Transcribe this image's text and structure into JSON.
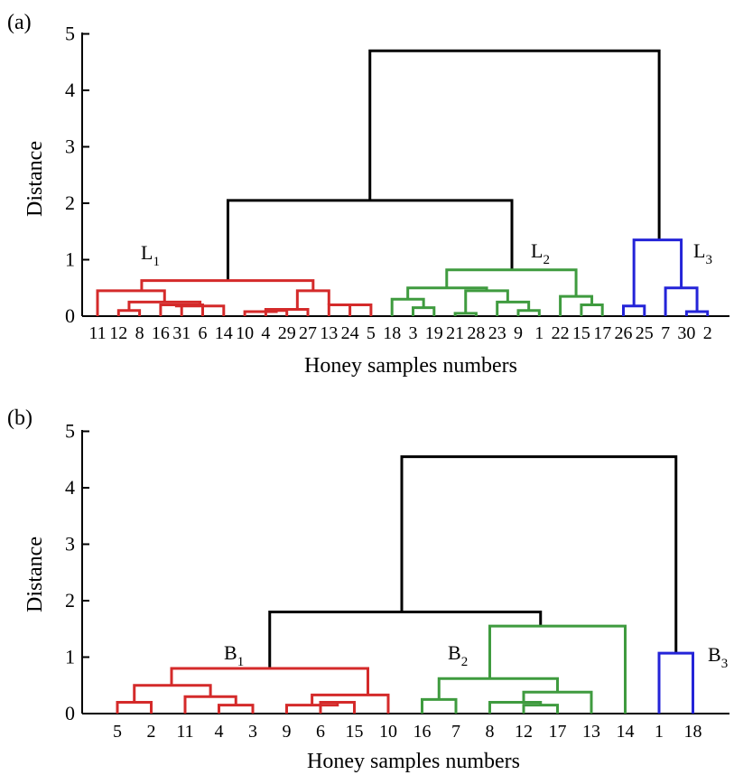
{
  "colors": {
    "axis": "#000000",
    "red": "#d42a2a",
    "green": "#3f9b3f",
    "blue": "#2424d8",
    "black": "#000000"
  },
  "chart_data": [
    {
      "type": "dendrogram",
      "panel": "(a)",
      "xlabel": "Honey samples numbers",
      "ylabel": "Distance",
      "ylim": [
        0,
        5
      ],
      "yticks": [
        "0",
        "1",
        "2",
        "3",
        "4",
        "5"
      ],
      "leaves": [
        "11",
        "12",
        "8",
        "16",
        "31",
        "6",
        "14",
        "10",
        "4",
        "29",
        "27",
        "13",
        "24",
        "5",
        "18",
        "3",
        "19",
        "21",
        "28",
        "23",
        "9",
        "1",
        "22",
        "15",
        "17",
        "26",
        "25",
        "7",
        "30",
        "2"
      ],
      "clusters": [
        {
          "label": "L",
          "sub": "1",
          "color": "red",
          "height": 0.63
        },
        {
          "label": "L",
          "sub": "2",
          "color": "green",
          "height": 0.82
        },
        {
          "label": "L",
          "sub": "3",
          "color": "blue",
          "height": 1.35
        }
      ],
      "merges": [
        {
          "left": "L1",
          "right": "L2",
          "height": 2.05
        },
        {
          "left": "L1+L2",
          "right": "L3",
          "height": 4.7
        }
      ]
    },
    {
      "type": "dendrogram",
      "panel": "(b)",
      "xlabel": "Honey samples numbers",
      "ylabel": "Distance",
      "ylim": [
        0,
        5
      ],
      "yticks": [
        "0",
        "1",
        "2",
        "3",
        "4",
        "5"
      ],
      "leaves": [
        "5",
        "2",
        "11",
        "4",
        "3",
        "9",
        "6",
        "15",
        "10",
        "16",
        "7",
        "8",
        "12",
        "17",
        "13",
        "14",
        "1",
        "18"
      ],
      "clusters": [
        {
          "label": "B",
          "sub": "1",
          "color": "red",
          "height": 0.8
        },
        {
          "label": "B",
          "sub": "2",
          "color": "green",
          "height": 1.55
        },
        {
          "label": "B",
          "sub": "3",
          "color": "blue",
          "height": 1.07
        }
      ],
      "merges": [
        {
          "left": "B1",
          "right": "B2",
          "height": 1.8
        },
        {
          "left": "B1+B2",
          "right": "B3",
          "height": 4.55
        }
      ]
    }
  ]
}
